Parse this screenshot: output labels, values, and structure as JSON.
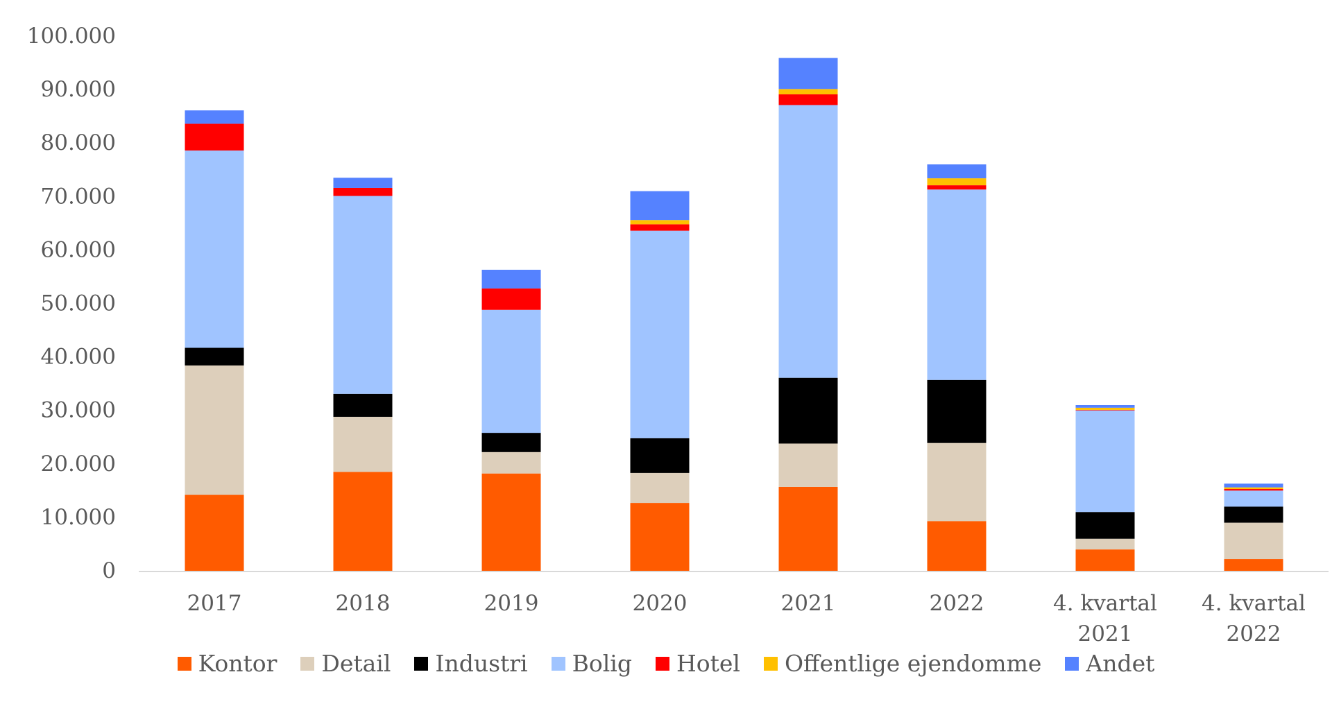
{
  "chart_data": {
    "type": "bar",
    "stacked": true,
    "title": "",
    "xlabel": "",
    "ylabel": "",
    "ylim": [
      0,
      100000
    ],
    "yticks": [
      "0",
      "10.000",
      "20.000",
      "30.000",
      "40.000",
      "50.000",
      "60.000",
      "70.000",
      "80.000",
      "90.000",
      "100.000"
    ],
    "categories": [
      [
        "2017"
      ],
      [
        "2018"
      ],
      [
        "2019"
      ],
      [
        "2020"
      ],
      [
        "2021"
      ],
      [
        "2022"
      ],
      [
        "4. kvartal",
        "2021"
      ],
      [
        "4. kvartal",
        "2022"
      ]
    ],
    "grid": false,
    "legend_position": "bottom",
    "series": [
      {
        "name": "Kontor",
        "color": "#FF5B00",
        "values": [
          14200,
          18500,
          18200,
          12700,
          15700,
          9300,
          4000,
          2200
        ]
      },
      {
        "name": "Detail",
        "color": "#DDCFBB",
        "values": [
          24200,
          10300,
          4000,
          5600,
          8100,
          14600,
          2000,
          6800
        ]
      },
      {
        "name": "Industri",
        "color": "#000000",
        "values": [
          3300,
          4300,
          3600,
          6500,
          12300,
          11800,
          5000,
          3000
        ]
      },
      {
        "name": "Bolig",
        "color": "#A0C4FF",
        "values": [
          36900,
          37000,
          23000,
          38800,
          51000,
          35600,
          19000,
          3000
        ]
      },
      {
        "name": "Hotel",
        "color": "#FF0000",
        "values": [
          5000,
          1500,
          4000,
          1200,
          2000,
          800,
          100,
          300
        ]
      },
      {
        "name": "Offentlige ejendomme",
        "color": "#FFC000",
        "values": [
          0,
          0,
          0,
          800,
          1000,
          1300,
          400,
          300
        ]
      },
      {
        "name": "Andet",
        "color": "#5582FF",
        "values": [
          2500,
          1900,
          3500,
          5400,
          5800,
          2600,
          500,
          700
        ]
      }
    ]
  }
}
